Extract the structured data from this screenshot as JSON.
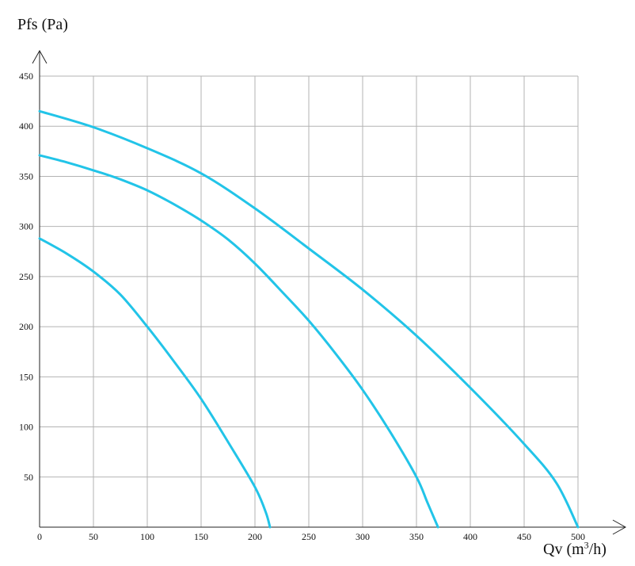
{
  "chart_data": {
    "type": "line",
    "ylabel": "Pfs (Pa)",
    "xlabel_main": "Qv (m",
    "xlabel_sup": "3",
    "xlabel_tail": "/h)",
    "xlim": [
      0,
      500
    ],
    "ylim": [
      0,
      450
    ],
    "x_ticks": [
      0,
      50,
      100,
      150,
      200,
      250,
      300,
      350,
      400,
      450,
      500
    ],
    "y_ticks": [
      50,
      100,
      150,
      200,
      250,
      300,
      350,
      400,
      450
    ],
    "grid": true,
    "line_color": "#22c4e8",
    "series": [
      {
        "x": [
          0,
          25,
          50,
          75,
          100,
          125,
          150,
          175,
          200,
          210,
          214
        ],
        "y": [
          288,
          273,
          255,
          232,
          200,
          165,
          128,
          85,
          40,
          15,
          0
        ]
      },
      {
        "x": [
          0,
          25,
          50,
          75,
          100,
          125,
          150,
          175,
          200,
          225,
          250,
          275,
          300,
          325,
          350,
          360,
          370
        ],
        "y": [
          371,
          364,
          356,
          347,
          336,
          322,
          306,
          287,
          263,
          235,
          206,
          173,
          137,
          96,
          50,
          25,
          0
        ]
      },
      {
        "x": [
          0,
          50,
          100,
          150,
          200,
          250,
          300,
          350,
          400,
          450,
          480,
          500
        ],
        "y": [
          415,
          399,
          378,
          353,
          318,
          278,
          237,
          191,
          139,
          83,
          44,
          0
        ]
      }
    ]
  }
}
